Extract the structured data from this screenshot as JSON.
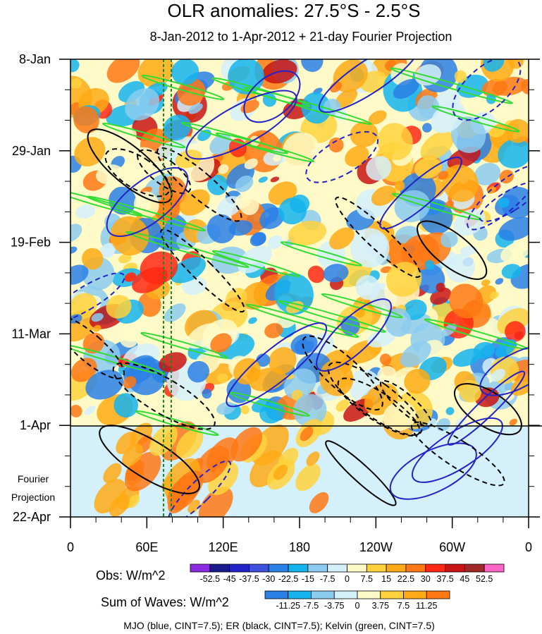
{
  "chart_data": {
    "type": "heatmap",
    "title": "OLR anomalies: 27.5°S - 2.5°S",
    "subtitle": "8-Jan-2012 to 1-Apr-2012 + 21-day Fourier Projection",
    "y_ticks": [
      "8-Jan",
      "29-Jan",
      "19-Feb",
      "11-Mar",
      "1-Apr",
      "22-Apr"
    ],
    "x_ticks": [
      "0",
      "60E",
      "120E",
      "180",
      "120W",
      "60W",
      "0"
    ],
    "projection_label": [
      "Fourier",
      "Projection"
    ],
    "reference_lines_lon": [
      72,
      78
    ],
    "obs": {
      "label": "Obs: W/m^2",
      "levels": [
        "-52.5",
        "-45",
        "-37.5",
        "-30",
        "-22.5",
        "-15",
        "-7.5",
        "0",
        "7.5",
        "15",
        "22.5",
        "30",
        "37.5",
        "45",
        "52.5"
      ],
      "colors": [
        "#8a2be2",
        "#1a1a8c",
        "#2323c8",
        "#3c50dc",
        "#2a80e6",
        "#14b4ee",
        "#8ccbf0",
        "#d4f0fa",
        "#fffac8",
        "#ffd23c",
        "#ffaa14",
        "#ff7814",
        "#ff2814",
        "#c81414",
        "#a02828",
        "#ff64c8"
      ]
    },
    "waves": {
      "label": "Sum of Waves: W/m^2",
      "levels": [
        "-11.25",
        "-7.5",
        "-3.75",
        "0",
        "3.75",
        "7.5",
        "11.25"
      ],
      "colors": [
        "#2a80e6",
        "#14b4ee",
        "#8ccbf0",
        "#d4f0fa",
        "#fffac8",
        "#ffd23c",
        "#ffaa14",
        "#ff7814"
      ]
    },
    "legend_text": "MJO (blue, CINT=7.5); ER (black, CINT=7.5); Kelvin (green, CINT=7.5)",
    "contour_series": [
      {
        "name": "MJO",
        "color": "#2323c8"
      },
      {
        "name": "ER",
        "color": "#000000"
      },
      {
        "name": "Kelvin",
        "color": "#32dc32"
      }
    ],
    "grid": false
  }
}
